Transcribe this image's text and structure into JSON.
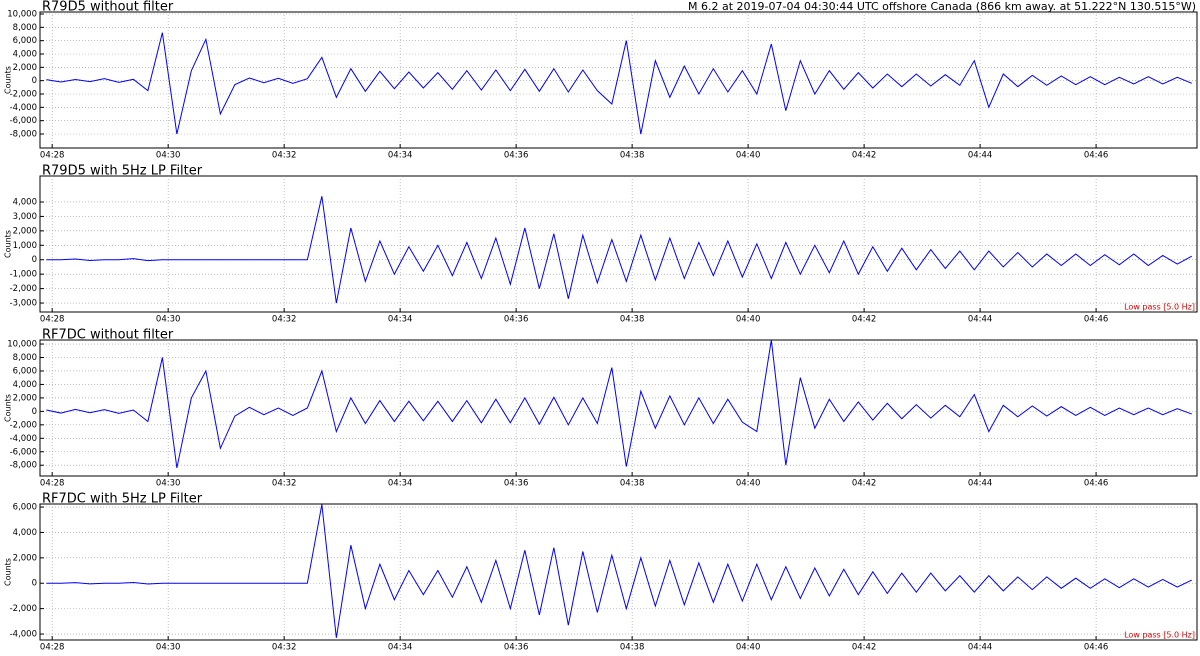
{
  "chart_data": [
    {
      "type": "line",
      "title": "R79D5 without filter",
      "annotation": "M 6.2  at 2019-07-04 04:30:44 UTC  offshore Canada (866 km away. at 51.222°N 130.515°W)",
      "y_label": "Counts",
      "color": "#0000ff",
      "grid": true,
      "xlim": [
        267.79,
        287.74
      ],
      "ylim": [
        -10100,
        10300
      ],
      "xticks": [
        {
          "value": 268,
          "label": "04:28"
        },
        {
          "value": 270,
          "label": "04:30"
        },
        {
          "value": 272,
          "label": "04:32"
        },
        {
          "value": 274,
          "label": "04:34"
        },
        {
          "value": 276,
          "label": "04:36"
        },
        {
          "value": 278,
          "label": "04:38"
        },
        {
          "value": 280,
          "label": "04:40"
        },
        {
          "value": 282,
          "label": "04:42"
        },
        {
          "value": 284,
          "label": "04:44"
        },
        {
          "value": 286,
          "label": "04:46"
        }
      ],
      "yticks": [
        {
          "value": 10000,
          "label": "10,000"
        },
        {
          "value": 8000,
          "label": "8,000"
        },
        {
          "value": 6000,
          "label": "6,000"
        },
        {
          "value": 4000,
          "label": "4,000"
        },
        {
          "value": 2000,
          "label": "2,000"
        },
        0,
        {
          "value": -2000,
          "label": "-2,000"
        },
        {
          "value": -4000,
          "label": "-4,000"
        },
        {
          "value": -6000,
          "label": "-6,000"
        },
        {
          "value": -8000,
          "label": "-8,000"
        }
      ],
      "x": [
        267.9,
        268.15,
        268.4,
        268.65,
        268.9,
        269.15,
        269.4,
        269.65,
        269.9,
        270.15,
        270.4,
        270.65,
        270.9,
        271.15,
        271.4,
        271.65,
        271.9,
        272.15,
        272.4,
        272.65,
        272.9,
        273.15,
        273.4,
        273.65,
        273.9,
        274.15,
        274.4,
        274.65,
        274.9,
        275.15,
        275.4,
        275.65,
        275.9,
        276.15,
        276.4,
        276.65,
        276.9,
        277.15,
        277.4,
        277.65,
        277.9,
        278.15,
        278.4,
        278.65,
        278.9,
        279.15,
        279.4,
        279.65,
        279.9,
        280.15,
        280.4,
        280.65,
        280.9,
        281.15,
        281.4,
        281.65,
        281.9,
        282.15,
        282.4,
        282.65,
        282.9,
        283.15,
        283.4,
        283.65,
        283.9,
        284.15,
        284.4,
        284.65,
        284.9,
        285.15,
        285.4,
        285.65,
        285.9,
        286.15,
        286.4,
        286.65,
        286.9,
        287.15,
        287.4,
        287.65
      ],
      "values": [
        150,
        -200,
        180,
        -150,
        300,
        -250,
        200,
        -1500,
        7200,
        -8000,
        1500,
        6200,
        -5000,
        -600,
        400,
        -300,
        350,
        -400,
        300,
        3500,
        -2500,
        1800,
        -1600,
        1400,
        -1200,
        1300,
        -1100,
        1200,
        -1300,
        1500,
        -1400,
        1600,
        -1500,
        1700,
        -1600,
        1800,
        -1700,
        1600,
        -1500,
        -3500,
        6000,
        -8000,
        3000,
        -2500,
        2200,
        -2000,
        1800,
        -1700,
        1500,
        -2000,
        5500,
        -4500,
        3000,
        -2000,
        1500,
        -1300,
        1200,
        -1100,
        1000,
        -900,
        1000,
        -800,
        900,
        -700,
        3000,
        -4000,
        1000,
        -900,
        800,
        -700,
        700,
        -600,
        600,
        -600,
        500,
        -500,
        600,
        -500,
        500,
        -400
      ]
    },
    {
      "type": "line",
      "title": "R79D5 with 5Hz LP Filter",
      "annotation": "Low pass [5.0 Hz]",
      "y_label": "Counts",
      "color": "#0000ff",
      "grid": true,
      "xlim": [
        267.79,
        287.74
      ],
      "ylim": [
        -3620,
        5800
      ],
      "xticks": [
        {
          "value": 268,
          "label": "04:28"
        },
        {
          "value": 270,
          "label": "04:30"
        },
        {
          "value": 272,
          "label": "04:32"
        },
        {
          "value": 274,
          "label": "04:34"
        },
        {
          "value": 276,
          "label": "04:36"
        },
        {
          "value": 278,
          "label": "04:38"
        },
        {
          "value": 280,
          "label": "04:40"
        },
        {
          "value": 282,
          "label": "04:42"
        },
        {
          "value": 284,
          "label": "04:44"
        },
        {
          "value": 286,
          "label": "04:46"
        }
      ],
      "yticks": [
        {
          "value": 4000,
          "label": "4,000"
        },
        {
          "value": 3000,
          "label": "3,000"
        },
        {
          "value": 2000,
          "label": "2,000"
        },
        {
          "value": 1000,
          "label": "1,000"
        },
        0,
        {
          "value": -1000,
          "label": "-1,000"
        },
        {
          "value": -2000,
          "label": "-2,000"
        },
        {
          "value": -3000,
          "label": "-3,000"
        }
      ],
      "x": [
        267.9,
        268.15,
        268.4,
        268.65,
        268.9,
        269.15,
        269.4,
        269.65,
        269.9,
        270.15,
        270.4,
        270.65,
        270.9,
        271.15,
        271.4,
        271.65,
        271.9,
        272.15,
        272.4,
        272.65,
        272.9,
        273.15,
        273.4,
        273.65,
        273.9,
        274.15,
        274.4,
        274.65,
        274.9,
        275.15,
        275.4,
        275.65,
        275.9,
        276.15,
        276.4,
        276.65,
        276.9,
        277.15,
        277.4,
        277.65,
        277.9,
        278.15,
        278.4,
        278.65,
        278.9,
        279.15,
        279.4,
        279.65,
        279.9,
        280.15,
        280.4,
        280.65,
        280.9,
        281.15,
        281.4,
        281.65,
        281.9,
        282.15,
        282.4,
        282.65,
        282.9,
        283.15,
        283.4,
        283.65,
        283.9,
        284.15,
        284.4,
        284.65,
        284.9,
        285.15,
        285.4,
        285.65,
        285.9,
        286.15,
        286.4,
        286.65,
        286.9,
        287.15,
        287.4,
        287.65
      ],
      "values": [
        0,
        0,
        50,
        -50,
        0,
        0,
        80,
        -60,
        0,
        0,
        0,
        0,
        0,
        0,
        0,
        0,
        0,
        0,
        0,
        4400,
        -3000,
        2200,
        -1500,
        1300,
        -1000,
        900,
        -800,
        1000,
        -1100,
        1200,
        -1300,
        1500,
        -1700,
        2200,
        -2000,
        1800,
        -2700,
        1700,
        -1600,
        1400,
        -1500,
        1700,
        -1400,
        1500,
        -1300,
        1200,
        -1100,
        1300,
        -1200,
        1100,
        -1300,
        1200,
        -1000,
        1000,
        -900,
        1300,
        -1000,
        900,
        -800,
        800,
        -700,
        700,
        -600,
        600,
        -700,
        600,
        -500,
        500,
        -500,
        400,
        -400,
        400,
        -400,
        350,
        -350,
        400,
        -400,
        300,
        -300,
        250
      ]
    },
    {
      "type": "line",
      "title": "RF7DC without filter",
      "y_label": "Counts",
      "color": "#0000ff",
      "grid": true,
      "xlim": [
        267.79,
        287.74
      ],
      "ylim": [
        -9600,
        10600
      ],
      "xticks": [
        {
          "value": 268,
          "label": "04:28"
        },
        {
          "value": 270,
          "label": "04:30"
        },
        {
          "value": 272,
          "label": "04:32"
        },
        {
          "value": 274,
          "label": "04:34"
        },
        {
          "value": 276,
          "label": "04:36"
        },
        {
          "value": 278,
          "label": "04:38"
        },
        {
          "value": 280,
          "label": "04:40"
        },
        {
          "value": 282,
          "label": "04:42"
        },
        {
          "value": 284,
          "label": "04:44"
        },
        {
          "value": 286,
          "label": "04:46"
        }
      ],
      "yticks": [
        {
          "value": 10000,
          "label": "10,000"
        },
        {
          "value": 8000,
          "label": "8,000"
        },
        {
          "value": 6000,
          "label": "6,000"
        },
        {
          "value": 4000,
          "label": "4,000"
        },
        {
          "value": 2000,
          "label": "2,000"
        },
        0,
        {
          "value": -2000,
          "label": "-2,000"
        },
        {
          "value": -4000,
          "label": "-4,000"
        },
        {
          "value": -6000,
          "label": "-6,000"
        },
        {
          "value": -8000,
          "label": "-8,000"
        }
      ],
      "x": [
        267.9,
        268.15,
        268.4,
        268.65,
        268.9,
        269.15,
        269.4,
        269.65,
        269.9,
        270.15,
        270.4,
        270.65,
        270.9,
        271.15,
        271.4,
        271.65,
        271.9,
        272.15,
        272.4,
        272.65,
        272.9,
        273.15,
        273.4,
        273.65,
        273.9,
        274.15,
        274.4,
        274.65,
        274.9,
        275.15,
        275.4,
        275.65,
        275.9,
        276.15,
        276.4,
        276.65,
        276.9,
        277.15,
        277.4,
        277.65,
        277.9,
        278.15,
        278.4,
        278.65,
        278.9,
        279.15,
        279.4,
        279.65,
        279.9,
        280.15,
        280.4,
        280.65,
        280.9,
        281.15,
        281.4,
        281.65,
        281.9,
        282.15,
        282.4,
        282.65,
        282.9,
        283.15,
        283.4,
        283.65,
        283.9,
        284.15,
        284.4,
        284.65,
        284.9,
        285.15,
        285.4,
        285.65,
        285.9,
        286.15,
        286.4,
        286.65,
        286.9,
        287.15,
        287.4,
        287.65
      ],
      "values": [
        200,
        -250,
        300,
        -200,
        250,
        -300,
        200,
        -1500,
        8000,
        -8400,
        2000,
        6000,
        -5500,
        -700,
        600,
        -500,
        500,
        -600,
        500,
        6000,
        -3000,
        2000,
        -1800,
        1600,
        -1500,
        1500,
        -1400,
        1500,
        -1500,
        1600,
        -1700,
        1800,
        -1700,
        2000,
        -1900,
        2100,
        -2000,
        2000,
        -1800,
        6500,
        -8200,
        3000,
        -2500,
        2300,
        -2000,
        2000,
        -1800,
        1800,
        -1600,
        -3000,
        10600,
        -8000,
        5000,
        -2500,
        1800,
        -1500,
        1400,
        -1300,
        1200,
        -1100,
        1000,
        -1000,
        900,
        -800,
        2500,
        -3000,
        900,
        -800,
        800,
        -700,
        700,
        -600,
        600,
        -600,
        500,
        -500,
        500,
        -500,
        400,
        -400
      ]
    },
    {
      "type": "line",
      "title": "RF7DC with 5Hz LP Filter",
      "annotation": "Low pass [5.0 Hz]",
      "y_label": "Counts",
      "color": "#0000ff",
      "grid": true,
      "xlim": [
        267.79,
        287.74
      ],
      "ylim": [
        -4470,
        6240
      ],
      "xticks": [
        {
          "value": 268,
          "label": "04:28"
        },
        {
          "value": 270,
          "label": "04:30"
        },
        {
          "value": 272,
          "label": "04:32"
        },
        {
          "value": 274,
          "label": "04:34"
        },
        {
          "value": 276,
          "label": "04:36"
        },
        {
          "value": 278,
          "label": "04:38"
        },
        {
          "value": 280,
          "label": "04:40"
        },
        {
          "value": 282,
          "label": "04:42"
        },
        {
          "value": 284,
          "label": "04:44"
        },
        {
          "value": 286,
          "label": "04:46"
        }
      ],
      "yticks": [
        {
          "value": 6000,
          "label": "6,000"
        },
        {
          "value": 4000,
          "label": "4,000"
        },
        {
          "value": 2000,
          "label": "2,000"
        },
        0,
        {
          "value": -2000,
          "label": "-2,000"
        },
        {
          "value": -4000,
          "label": "-4,000"
        }
      ],
      "x": [
        267.9,
        268.15,
        268.4,
        268.65,
        268.9,
        269.15,
        269.4,
        269.65,
        269.9,
        270.15,
        270.4,
        270.65,
        270.9,
        271.15,
        271.4,
        271.65,
        271.9,
        272.15,
        272.4,
        272.65,
        272.9,
        273.15,
        273.4,
        273.65,
        273.9,
        274.15,
        274.4,
        274.65,
        274.9,
        275.15,
        275.4,
        275.65,
        275.9,
        276.15,
        276.4,
        276.65,
        276.9,
        277.15,
        277.4,
        277.65,
        277.9,
        278.15,
        278.4,
        278.65,
        278.9,
        279.15,
        279.4,
        279.65,
        279.9,
        280.15,
        280.4,
        280.65,
        280.9,
        281.15,
        281.4,
        281.65,
        281.9,
        282.15,
        282.4,
        282.65,
        282.9,
        283.15,
        283.4,
        283.65,
        283.9,
        284.15,
        284.4,
        284.65,
        284.9,
        285.15,
        285.4,
        285.65,
        285.9,
        286.15,
        286.4,
        286.65,
        286.9,
        287.15,
        287.4,
        287.65
      ],
      "values": [
        0,
        0,
        50,
        -50,
        0,
        0,
        60,
        -60,
        0,
        0,
        0,
        0,
        0,
        0,
        0,
        0,
        0,
        0,
        0,
        6200,
        -4300,
        3000,
        -2000,
        1500,
        -1300,
        1000,
        -900,
        1000,
        -1100,
        1300,
        -1500,
        1800,
        -2000,
        2600,
        -2500,
        2800,
        -3300,
        2500,
        -2300,
        2200,
        -2000,
        2000,
        -1800,
        1800,
        -1700,
        1600,
        -1500,
        1500,
        -1400,
        1500,
        -1300,
        1300,
        -1200,
        1200,
        -1000,
        1100,
        -900,
        900,
        -800,
        800,
        -700,
        800,
        -600,
        600,
        -700,
        600,
        -600,
        500,
        -500,
        500,
        -400,
        400,
        -400,
        350,
        -350,
        350,
        -300,
        300,
        -300,
        250
      ]
    }
  ]
}
